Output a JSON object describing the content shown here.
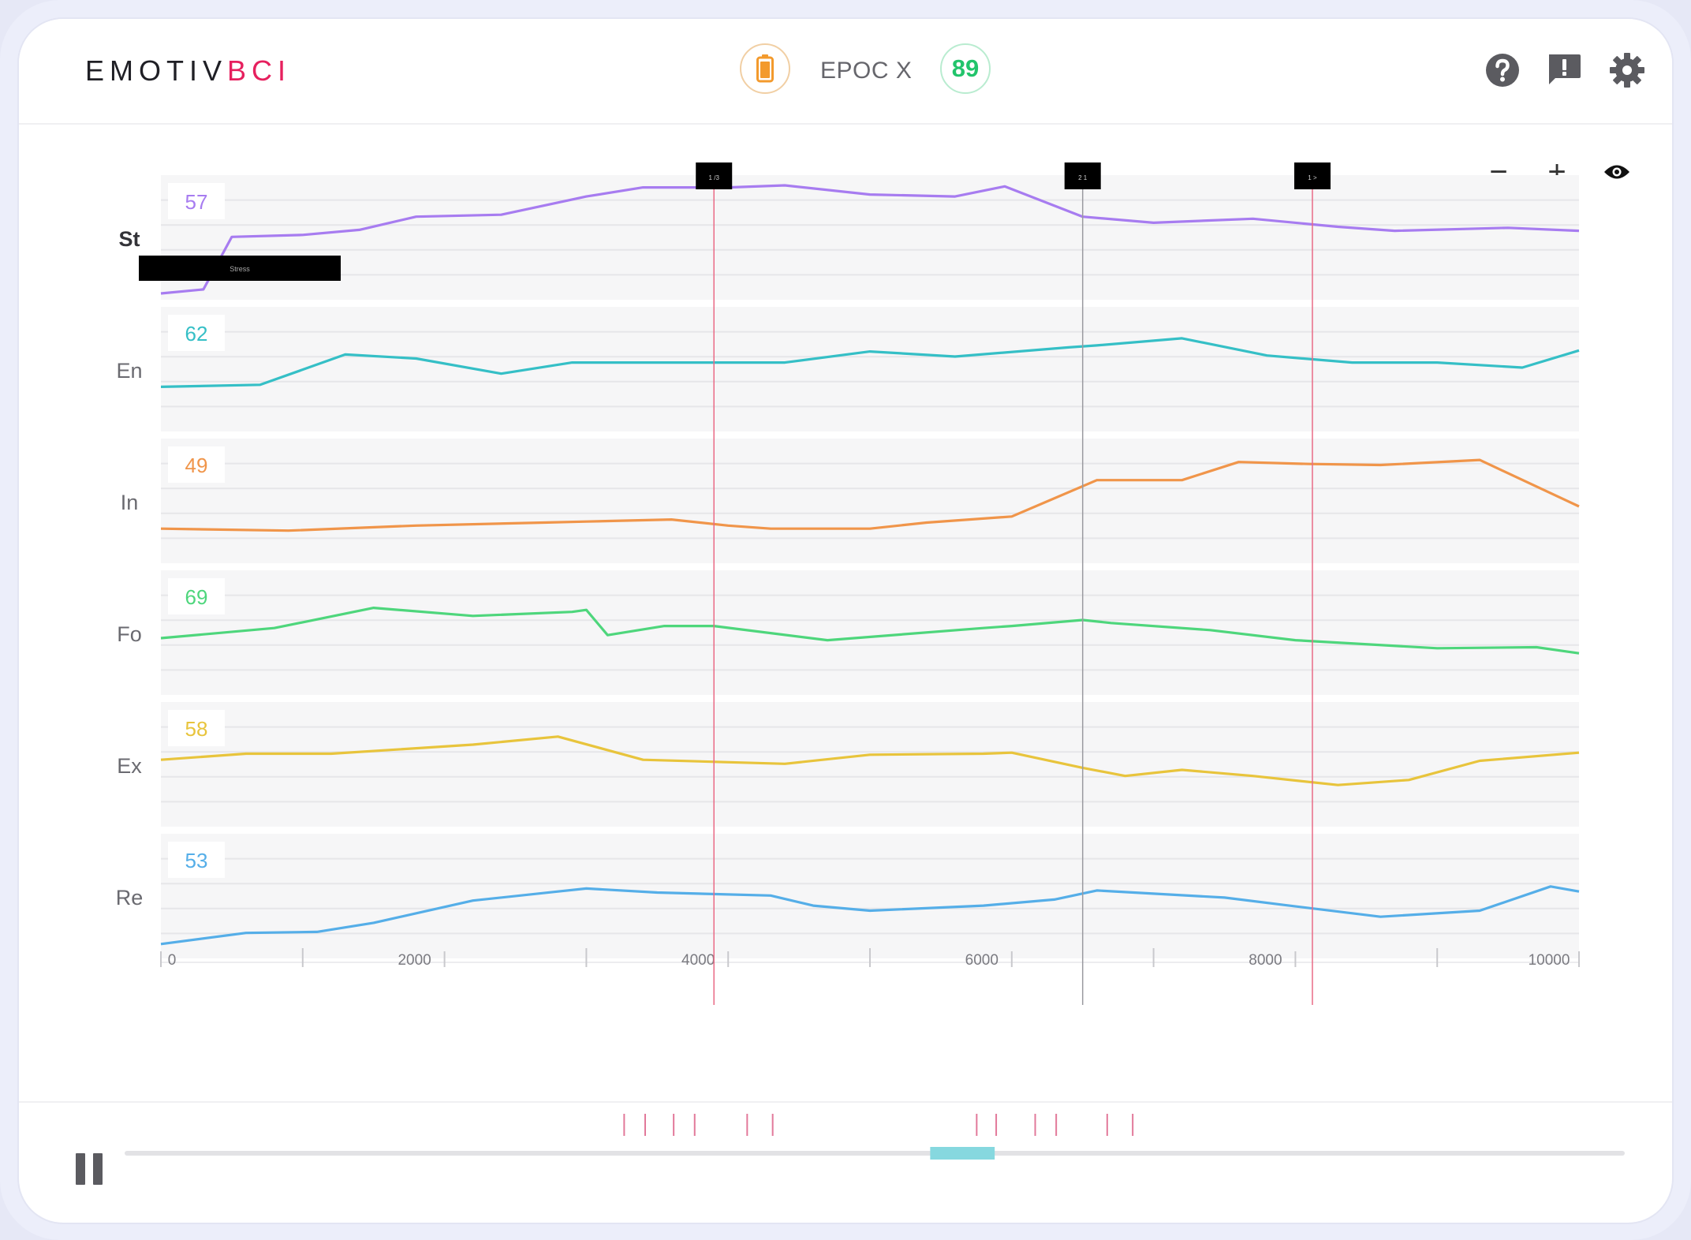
{
  "app": {
    "logo_part1": "EMOTIV",
    "logo_part2": "BCI",
    "device_name": "EPOC X",
    "contact_quality": "89",
    "battery_color": "#f39a2d",
    "quality_color": "#22c46b"
  },
  "header_icons": [
    "help-icon",
    "feedback-icon",
    "settings-icon"
  ],
  "zoom_controls": {
    "zoom_out": "−",
    "zoom_in": "+",
    "visibility": "eye-icon"
  },
  "markers": [
    {
      "label": "1 /3",
      "time": 3900,
      "color": "#e96a86"
    },
    {
      "label": "2 1",
      "time": 6500,
      "color": "#9a9aa0"
    },
    {
      "label": "1 >",
      "time": 8120,
      "color": "#e96a86"
    }
  ],
  "tooltip": {
    "text": "Stress"
  },
  "chart_data": {
    "type": "line",
    "xlim": [
      0,
      10000
    ],
    "x_ticks": [
      0,
      2000,
      4000,
      6000,
      8000,
      10000
    ],
    "x_tick_labels": [
      "0",
      "2000",
      "4000",
      "6000",
      "8000",
      "10000"
    ],
    "ylim": [
      0,
      100
    ],
    "series": [
      {
        "name": "St",
        "current": "57",
        "color": "#a77cf0",
        "points": [
          [
            0,
            0
          ],
          [
            300,
            4
          ],
          [
            500,
            56
          ],
          [
            1000,
            58
          ],
          [
            1400,
            63
          ],
          [
            1800,
            76
          ],
          [
            2400,
            78
          ],
          [
            3000,
            96
          ],
          [
            3400,
            105
          ],
          [
            4000,
            105
          ],
          [
            4400,
            107
          ],
          [
            5000,
            98
          ],
          [
            5600,
            96
          ],
          [
            5950,
            106
          ],
          [
            6500,
            76
          ],
          [
            7000,
            70
          ],
          [
            7700,
            74
          ],
          [
            8300,
            66
          ],
          [
            8700,
            62
          ],
          [
            9500,
            65
          ],
          [
            10000,
            62
          ]
        ]
      },
      {
        "name": "En",
        "current": "62",
        "color": "#35bfc6",
        "points": [
          [
            0,
            38
          ],
          [
            700,
            40
          ],
          [
            1300,
            70
          ],
          [
            1800,
            66
          ],
          [
            2400,
            51
          ],
          [
            2900,
            62
          ],
          [
            4000,
            62
          ],
          [
            4400,
            62
          ],
          [
            5000,
            73
          ],
          [
            5600,
            68
          ],
          [
            6400,
            77
          ],
          [
            6600,
            79
          ],
          [
            7200,
            86
          ],
          [
            7800,
            69
          ],
          [
            8400,
            62
          ],
          [
            9000,
            62
          ],
          [
            9600,
            57
          ],
          [
            10000,
            74
          ]
        ]
      },
      {
        "name": "In",
        "current": "49",
        "color": "#f0954a",
        "points": [
          [
            0,
            28
          ],
          [
            900,
            26
          ],
          [
            1800,
            31
          ],
          [
            2700,
            34
          ],
          [
            3000,
            35
          ],
          [
            3600,
            37
          ],
          [
            4000,
            31
          ],
          [
            4300,
            28
          ],
          [
            5000,
            28
          ],
          [
            5400,
            34
          ],
          [
            6000,
            40
          ],
          [
            6600,
            76
          ],
          [
            7200,
            76
          ],
          [
            7600,
            94
          ],
          [
            8100,
            92
          ],
          [
            8600,
            91
          ],
          [
            9300,
            96
          ],
          [
            10000,
            50
          ]
        ]
      },
      {
        "name": "Fo",
        "current": "69",
        "color": "#4ed67c",
        "points": [
          [
            0,
            50
          ],
          [
            800,
            60
          ],
          [
            1500,
            80
          ],
          [
            2200,
            72
          ],
          [
            2900,
            76
          ],
          [
            3000,
            78
          ],
          [
            3150,
            53
          ],
          [
            3550,
            62
          ],
          [
            3900,
            62
          ],
          [
            4700,
            48
          ],
          [
            5800,
            60
          ],
          [
            6000,
            62
          ],
          [
            6500,
            68
          ],
          [
            6700,
            65
          ],
          [
            7400,
            58
          ],
          [
            8000,
            48
          ],
          [
            9000,
            40
          ],
          [
            9700,
            41
          ],
          [
            10000,
            35
          ]
        ]
      },
      {
        "name": "Ex",
        "current": "58",
        "color": "#e8c43c",
        "points": [
          [
            0,
            60
          ],
          [
            600,
            66
          ],
          [
            1200,
            66
          ],
          [
            2200,
            75
          ],
          [
            2800,
            83
          ],
          [
            3400,
            60
          ],
          [
            4400,
            56
          ],
          [
            5000,
            65
          ],
          [
            5800,
            66
          ],
          [
            6000,
            67
          ],
          [
            6500,
            52
          ],
          [
            6800,
            44
          ],
          [
            7200,
            50
          ],
          [
            7700,
            44
          ],
          [
            8300,
            35
          ],
          [
            8800,
            40
          ],
          [
            9300,
            59
          ],
          [
            10000,
            67
          ]
        ]
      },
      {
        "name": "Re",
        "current": "53",
        "color": "#55aee8",
        "points": [
          [
            0,
            8
          ],
          [
            600,
            19
          ],
          [
            1100,
            20
          ],
          [
            1500,
            29
          ],
          [
            2200,
            51
          ],
          [
            2800,
            60
          ],
          [
            3000,
            63
          ],
          [
            3500,
            59
          ],
          [
            4300,
            56
          ],
          [
            4600,
            46
          ],
          [
            5000,
            41
          ],
          [
            5800,
            46
          ],
          [
            6300,
            52
          ],
          [
            6600,
            61
          ],
          [
            7500,
            54
          ],
          [
            7900,
            47
          ],
          [
            8600,
            35
          ],
          [
            9300,
            41
          ],
          [
            9800,
            65
          ],
          [
            10000,
            60
          ]
        ]
      }
    ]
  },
  "timeline": {
    "progress_start": 0.537,
    "progress_end": 0.58,
    "event_ticks": [
      0.333,
      0.347,
      0.366,
      0.38,
      0.415,
      0.432,
      0.568,
      0.581,
      0.607,
      0.621,
      0.655,
      0.672
    ]
  }
}
